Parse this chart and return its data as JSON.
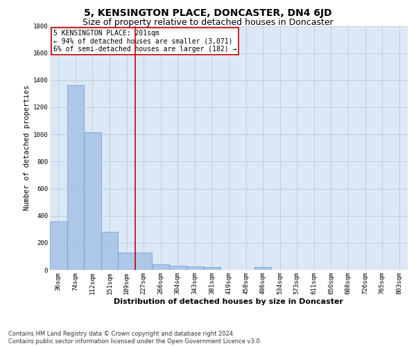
{
  "title": "5, KENSINGTON PLACE, DONCASTER, DN4 6JD",
  "subtitle": "Size of property relative to detached houses in Doncaster",
  "xlabel": "Distribution of detached houses by size in Doncaster",
  "ylabel": "Number of detached properties",
  "bar_labels": [
    "36sqm",
    "74sqm",
    "112sqm",
    "151sqm",
    "189sqm",
    "227sqm",
    "266sqm",
    "304sqm",
    "343sqm",
    "381sqm",
    "419sqm",
    "458sqm",
    "496sqm",
    "534sqm",
    "573sqm",
    "611sqm",
    "650sqm",
    "688sqm",
    "726sqm",
    "765sqm",
    "803sqm"
  ],
  "bar_values": [
    355,
    1365,
    1015,
    283,
    128,
    128,
    42,
    32,
    25,
    20,
    0,
    0,
    20,
    0,
    0,
    0,
    0,
    0,
    0,
    0,
    0
  ],
  "bar_color": "#aec6e8",
  "bar_edge_color": "#5b9bd5",
  "vline_x": 4.5,
  "vline_color": "#cc0000",
  "annotation_line1": "5 KENSINGTON PLACE: 201sqm",
  "annotation_line2": "← 94% of detached houses are smaller (3,071)",
  "annotation_line3": "6% of semi-detached houses are larger (182) →",
  "annotation_box_color": "#cc0000",
  "ylim": [
    0,
    1800
  ],
  "yticks": [
    0,
    200,
    400,
    600,
    800,
    1000,
    1200,
    1400,
    1600,
    1800
  ],
  "footer": "Contains HM Land Registry data © Crown copyright and database right 2024.\nContains public sector information licensed under the Open Government Licence v3.0.",
  "background_color": "#ffffff",
  "plot_bg_color": "#dce8f5",
  "grid_color": "#b0c4d8",
  "title_fontsize": 10,
  "subtitle_fontsize": 9,
  "xlabel_fontsize": 8,
  "ylabel_fontsize": 7.5,
  "tick_fontsize": 6.5,
  "annotation_fontsize": 7,
  "footer_fontsize": 6
}
